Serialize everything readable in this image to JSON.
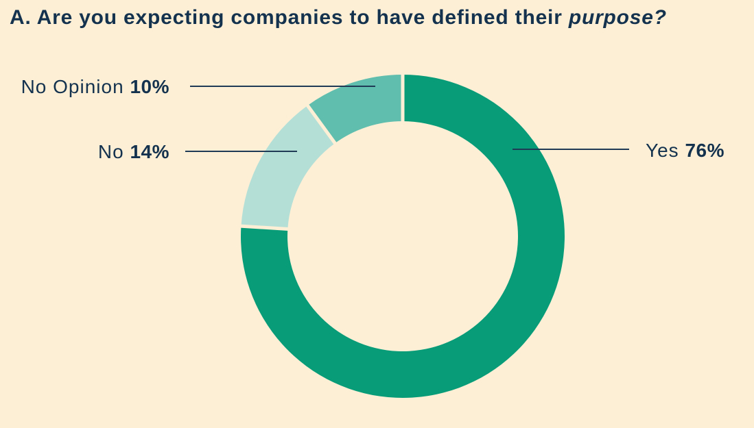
{
  "title": {
    "prefix": "A.",
    "main": " Are you expecting companies to have defined their ",
    "emphasis": "purpose?"
  },
  "chart_data": {
    "type": "pie",
    "subtype": "donut",
    "title": "A. Are you expecting companies to have defined their purpose?",
    "direction": "clockwise",
    "start_angle_deg": 0,
    "inner_radius_ratio": 0.71,
    "legend_position": "callouts",
    "grid": false,
    "segments": [
      {
        "label": "Yes",
        "value": 76,
        "value_label": "76%",
        "color": "#089C79"
      },
      {
        "label": "No",
        "value": 14,
        "value_label": "14%",
        "color": "#B3DFD7"
      },
      {
        "label": "No Opinion",
        "value": 10,
        "value_label": "10%",
        "color": "#5FBEAD"
      }
    ],
    "colors": {
      "background": "#FCEFD6",
      "text": "#14324E",
      "leader_line": "#1E3A54",
      "segment_gap": "#FCEFD6"
    }
  }
}
